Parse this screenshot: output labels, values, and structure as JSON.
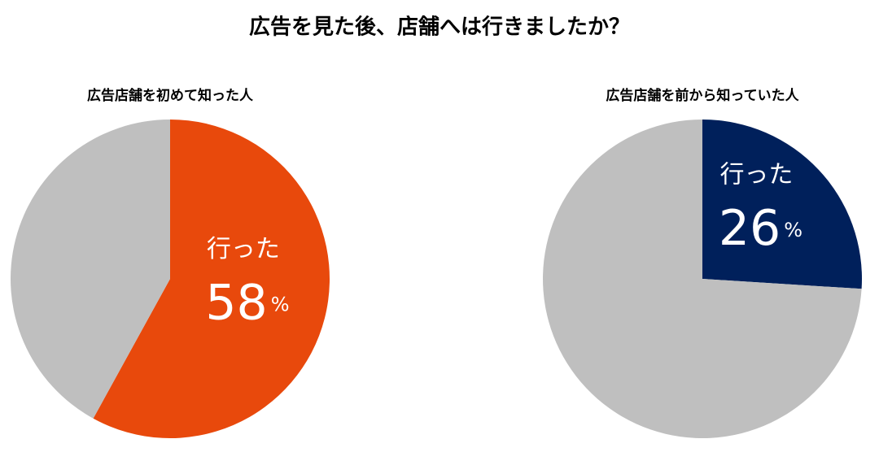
{
  "title": "広告を見た後、店舗へは行きましたか？",
  "chart_data": [
    {
      "type": "pie",
      "title": "広告店舗を初めて知った人",
      "categories": [
        "行った",
        null
      ],
      "values": [
        58,
        42
      ],
      "value_labels": [
        "58%",
        null
      ],
      "colors": [
        "#e8490c",
        "#bfbfbf"
      ]
    },
    {
      "type": "pie",
      "title": "広告店舗を前から知っていた人",
      "categories": [
        "行った",
        null
      ],
      "values": [
        26,
        74
      ],
      "value_labels": [
        "26%",
        null
      ],
      "colors": [
        "#00205b",
        "#bfbfbf"
      ]
    }
  ]
}
